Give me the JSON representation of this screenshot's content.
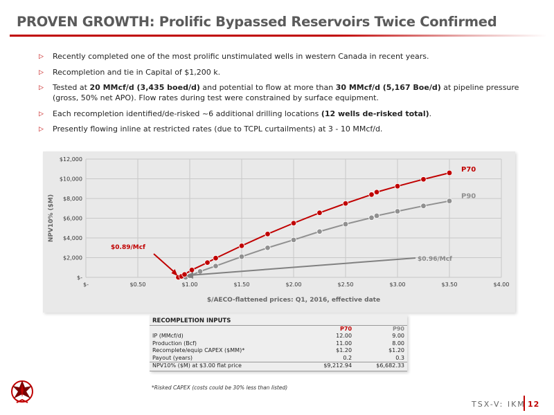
{
  "title": "PROVEN GROWTH: Prolific Bypassed Reservoirs Twice Confirmed",
  "bullets": [
    {
      "segments": [
        {
          "text": "Recently completed one of the most prolific unstimulated wells in western Canada in recent years.",
          "bold": false
        }
      ]
    },
    {
      "segments": [
        {
          "text": "Recompletion and tie in Capital of $1,200 k.",
          "bold": false
        }
      ]
    },
    {
      "segments": [
        {
          "text": "Tested at ",
          "bold": false
        },
        {
          "text": "20 MMcf/d (3,435 boed/d)",
          "bold": true
        },
        {
          "text": " and potential to flow at more than ",
          "bold": false
        },
        {
          "text": "30 MMcf/d (5,167 Boe/d)",
          "bold": true
        },
        {
          "text": " at pipeline pressure (gross, 50% net APO). Flow rates during test were constrained by surface equipment.",
          "bold": false
        }
      ]
    },
    {
      "segments": [
        {
          "text": "Each recompletion identified/de-risked ~6 additional drilling locations ",
          "bold": false
        },
        {
          "text": "(12 wells de-risked total)",
          "bold": true
        },
        {
          "text": ".",
          "bold": false
        }
      ]
    },
    {
      "segments": [
        {
          "text": "Presently flowing inline at restricted rates (due to TCPL curtailments) at 3 - 10 MMcf/d.",
          "bold": false
        }
      ]
    }
  ],
  "chart_data": {
    "type": "line",
    "xlabel": "$/AECO-flattened prices: Q1, 2016, effective date",
    "ylabel": "NPV10% ($M)",
    "xlim": [
      0,
      4
    ],
    "ylim": [
      0,
      12000
    ],
    "x_ticks": [
      0,
      0.5,
      1.0,
      1.5,
      2.0,
      2.5,
      3.0,
      3.5,
      4.0
    ],
    "x_tick_labels": [
      "$-",
      "$0.50",
      "$1.00",
      "$1.50",
      "$2.00",
      "$2.50",
      "$3.00",
      "$3.50",
      "$4.00"
    ],
    "y_ticks": [
      0,
      2000,
      4000,
      6000,
      8000,
      10000,
      12000
    ],
    "y_tick_labels": [
      "$-",
      "$2,000",
      "$4,000",
      "$6,000",
      "$8,000",
      "$10,000",
      "$12,000"
    ],
    "grid": true,
    "series": [
      {
        "name": "P70",
        "color": "#c00000",
        "x": [
          0.89,
          0.92,
          0.95,
          1.02,
          1.17,
          1.25,
          1.5,
          1.75,
          2.0,
          2.25,
          2.5,
          2.75,
          2.8,
          3.0,
          3.25,
          3.5
        ],
        "y": [
          0,
          100,
          300,
          750,
          1500,
          1950,
          3200,
          4400,
          5500,
          6550,
          7500,
          8400,
          8650,
          9250,
          9950,
          10600
        ]
      },
      {
        "name": "P90",
        "color": "#909090",
        "x": [
          0.96,
          1.0,
          1.1,
          1.25,
          1.5,
          1.75,
          2.0,
          2.25,
          2.5,
          2.75,
          2.8,
          3.0,
          3.25,
          3.5
        ],
        "y": [
          0,
          150,
          600,
          1150,
          2100,
          3000,
          3800,
          4650,
          5400,
          6050,
          6250,
          6700,
          7250,
          7750
        ]
      }
    ],
    "annotations": [
      {
        "text": "$0.89/Mcf",
        "color": "#c00000",
        "x": 0.89,
        "y": 0
      },
      {
        "text": "$0.96/Mcf",
        "color": "#888888",
        "x": 0.96,
        "y": 0
      }
    ]
  },
  "recompletion_inputs": {
    "caption": "RECOMPLETION INPUTS",
    "col_p70": "P70",
    "col_p90": "P90",
    "rows": [
      {
        "label": "IP (MMcf/d)",
        "p70": "12.00",
        "p90": "9.00"
      },
      {
        "label": "Production (Bcf)",
        "p70": "11.00",
        "p90": "8.00"
      },
      {
        "label": "Recomplete/equip CAPEX ($MM)*",
        "p70": "$1.20",
        "p90": "$1.20"
      },
      {
        "label": "Payout (years)",
        "p70": "0.2",
        "p90": "0.3"
      }
    ],
    "last_row": {
      "label": "NPV10% ($M) at $3.00 flat price",
      "p70": "$9,212.94",
      "p90": "$6,682.33"
    }
  },
  "footnote": "*Risked CAPEX (costs could be 30% less than listed)",
  "ticker": "TSX-V: IKM",
  "page_number": "12",
  "colors": {
    "accent": "#c00000",
    "p90": "#909090",
    "panel": "#e9e9e9"
  },
  "icons": {
    "logo": "phoenix-logo-icon",
    "bullet": "triangle-bullet-icon"
  }
}
